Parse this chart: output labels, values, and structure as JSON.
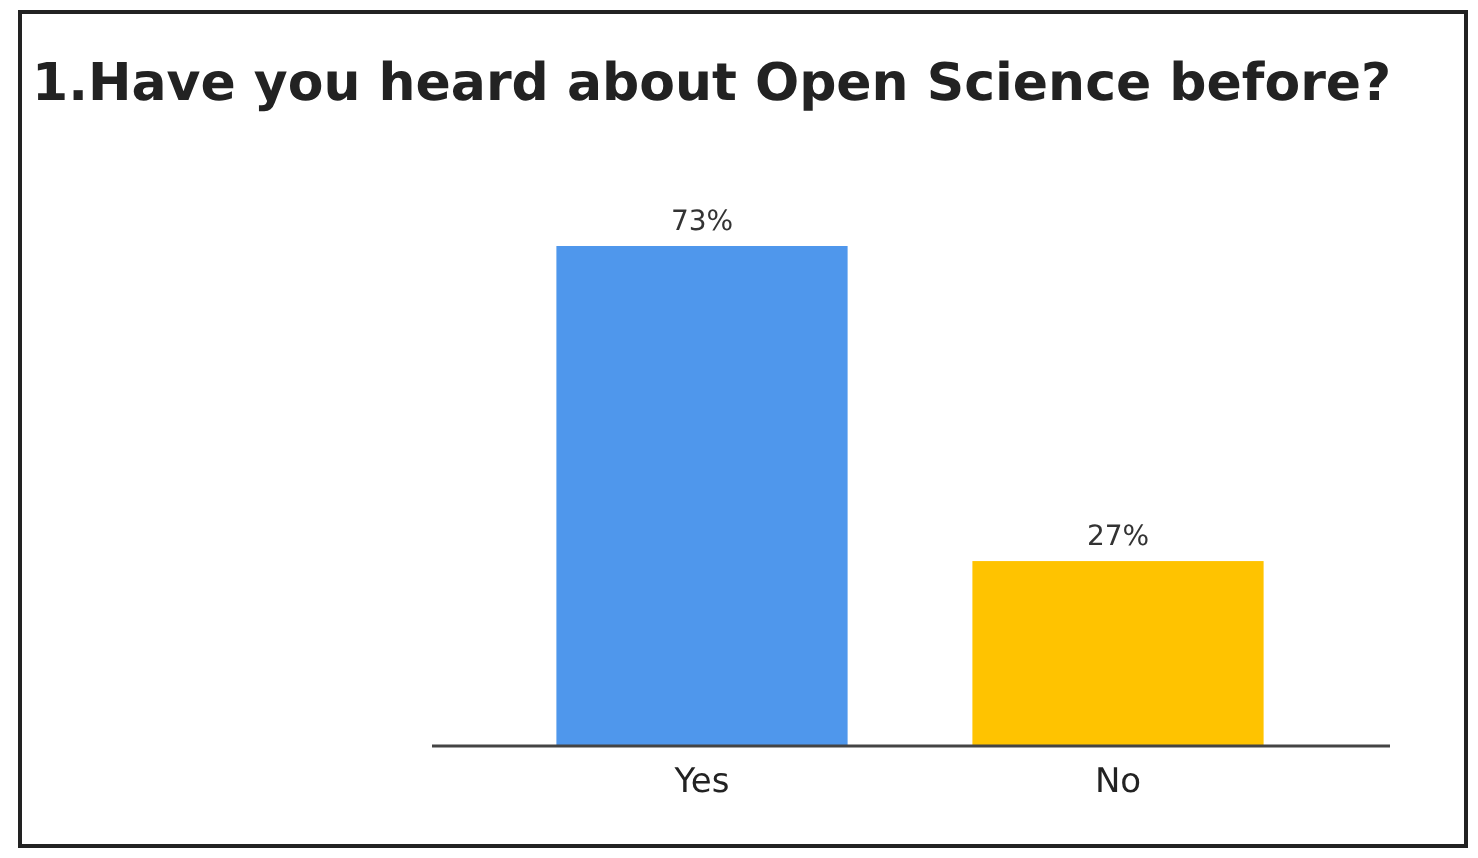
{
  "chart_data": {
    "type": "bar",
    "title": "1.Have you heard about Open Science before?",
    "categories": [
      "Yes",
      "No"
    ],
    "values": [
      73,
      27
    ],
    "colors": [
      "#4f97ec",
      "#ffc300"
    ],
    "value_labels": [
      "73%",
      "27%"
    ]
  }
}
